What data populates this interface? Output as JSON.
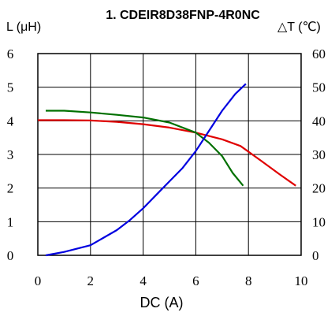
{
  "chart_data": {
    "type": "line",
    "title": "1. CDEIR8D38FNP-4R0NC",
    "xlabel": "DC (A)",
    "ylabel_left": "L (μH)",
    "ylabel_right": "△T (℃)",
    "xlim": [
      0,
      10
    ],
    "ylim_left": [
      0,
      6
    ],
    "ylim_right": [
      0,
      60
    ],
    "grid": true,
    "x_ticks": [
      "0",
      "2",
      "4",
      "6",
      "8",
      "10"
    ],
    "y_ticks_left": [
      "0",
      "1",
      "2",
      "3",
      "4",
      "5",
      "6"
    ],
    "y_ticks_right": [
      "0",
      "10",
      "20",
      "30",
      "40",
      "50",
      "60"
    ],
    "series": [
      {
        "axis": "left",
        "color": "#e00000",
        "points": [
          [
            0,
            4.02
          ],
          [
            1,
            4.02
          ],
          [
            2,
            4.01
          ],
          [
            3,
            3.97
          ],
          [
            4,
            3.9
          ],
          [
            5,
            3.8
          ],
          [
            6,
            3.65
          ],
          [
            7,
            3.45
          ],
          [
            7.7,
            3.25
          ],
          [
            8.5,
            2.8
          ],
          [
            9.2,
            2.4
          ],
          [
            9.8,
            2.07
          ]
        ]
      },
      {
        "axis": "left",
        "color": "#007000",
        "points": [
          [
            0.3,
            4.3
          ],
          [
            1,
            4.3
          ],
          [
            2,
            4.25
          ],
          [
            3,
            4.18
          ],
          [
            4,
            4.1
          ],
          [
            5,
            3.95
          ],
          [
            6,
            3.65
          ],
          [
            6.5,
            3.35
          ],
          [
            7,
            2.95
          ],
          [
            7.4,
            2.45
          ],
          [
            7.8,
            2.07
          ]
        ]
      },
      {
        "axis": "right",
        "color": "#0000e0",
        "points": [
          [
            0.3,
            0
          ],
          [
            1,
            1
          ],
          [
            2,
            3
          ],
          [
            3,
            7.5
          ],
          [
            3.5,
            10.5
          ],
          [
            4,
            14
          ],
          [
            4.5,
            18
          ],
          [
            5,
            22
          ],
          [
            5.5,
            26
          ],
          [
            6,
            31
          ],
          [
            6.5,
            37
          ],
          [
            7,
            43
          ],
          [
            7.5,
            48
          ],
          [
            7.9,
            51
          ]
        ]
      }
    ]
  }
}
